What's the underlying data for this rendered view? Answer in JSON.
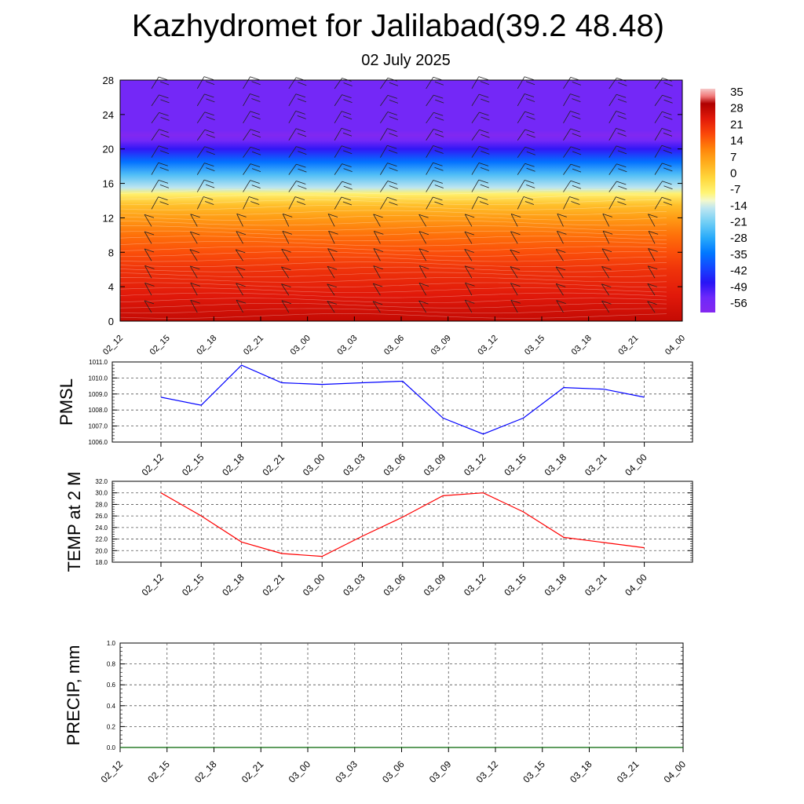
{
  "title": "Kazhydromet for Jalilabad(39.2 48.48)",
  "subtitle": "02 July 2025",
  "chart_data": [
    {
      "type": "heatmap",
      "description_type": "time-height cross-section with wind barbs",
      "x": [
        "02_12",
        "02_15",
        "02_18",
        "02_21",
        "03_00",
        "03_03",
        "03_06",
        "03_09",
        "03_12",
        "03_15",
        "03_18",
        "03_21",
        "04_00"
      ],
      "y_ticks": [
        0,
        4,
        8,
        12,
        16,
        20,
        24,
        28
      ],
      "ylim": [
        0,
        28
      ],
      "colorbar": {
        "labels": [
          "35",
          "28",
          "21",
          "14",
          "7",
          "0",
          "-7",
          "-14",
          "-21",
          "-28",
          "-35",
          "-42",
          "-49",
          "-56"
        ],
        "range": [
          -63,
          42
        ]
      },
      "profile": [
        {
          "y": 0,
          "value": 32
        },
        {
          "y": 3,
          "value": 28
        },
        {
          "y": 6,
          "value": 24
        },
        {
          "y": 8,
          "value": 20
        },
        {
          "y": 10,
          "value": 16
        },
        {
          "y": 12,
          "value": 10
        },
        {
          "y": 13.5,
          "value": 4
        },
        {
          "y": 14.8,
          "value": -6
        },
        {
          "y": 15.5,
          "value": -14
        },
        {
          "y": 17,
          "value": -24
        },
        {
          "y": 18.5,
          "value": -36
        },
        {
          "y": 20,
          "value": -50
        },
        {
          "y": 21,
          "value": -58
        },
        {
          "y": 21.6,
          "value": -62
        },
        {
          "y": 22.2,
          "value": -58
        },
        {
          "y": 28,
          "value": -58
        }
      ],
      "grid": false
    },
    {
      "type": "line",
      "ylabel": "PMSL",
      "x": [
        "02_12",
        "02_15",
        "02_18",
        "02_21",
        "03_00",
        "03_03",
        "03_06",
        "03_09",
        "03_12",
        "03_15",
        "03_18",
        "03_21",
        "04_00"
      ],
      "series": [
        {
          "values": [
            1008.8,
            1008.3,
            1010.8,
            1009.7,
            1009.6,
            1009.7,
            1009.8,
            1007.5,
            1006.5,
            1007.5,
            1009.4,
            1009.3,
            1008.8
          ],
          "color": "#0000ff"
        }
      ],
      "yticks": [
        "1006.0",
        "1007.0",
        "1008.0",
        "1009.0",
        "1010.0",
        "1011.0"
      ],
      "ylim": [
        1006.0,
        1011.0
      ],
      "grid": true
    },
    {
      "type": "line",
      "ylabel": "TEMP at 2 M",
      "x": [
        "02_12",
        "02_15",
        "02_18",
        "02_21",
        "03_00",
        "03_03",
        "03_06",
        "03_09",
        "03_12",
        "03_15",
        "03_18",
        "03_21",
        "04_00"
      ],
      "series": [
        {
          "values": [
            30.0,
            26.0,
            21.5,
            19.5,
            19.0,
            22.5,
            25.8,
            29.5,
            30.0,
            26.7,
            22.3,
            21.4,
            20.5
          ],
          "color": "#ff0000"
        }
      ],
      "yticks": [
        "18.0",
        "20.0",
        "22.0",
        "24.0",
        "26.0",
        "28.0",
        "30.0",
        "32.0"
      ],
      "ylim": [
        18.0,
        32.0
      ],
      "grid": true
    },
    {
      "type": "line",
      "ylabel": "PRECIP, mm",
      "x": [
        "02_12",
        "02_15",
        "02_18",
        "02_21",
        "03_00",
        "03_03",
        "03_06",
        "03_09",
        "03_12",
        "03_15",
        "03_18",
        "03_21",
        "04_00"
      ],
      "series": [
        {
          "values": [
            0,
            0,
            0,
            0,
            0,
            0,
            0,
            0,
            0,
            0,
            0,
            0,
            0
          ],
          "color": "#006400"
        }
      ],
      "yticks": [
        "0.0",
        "0.2",
        "0.4",
        "0.6",
        "0.8",
        "1.0"
      ],
      "ylim": [
        0.0,
        1.0
      ],
      "grid": true
    }
  ]
}
